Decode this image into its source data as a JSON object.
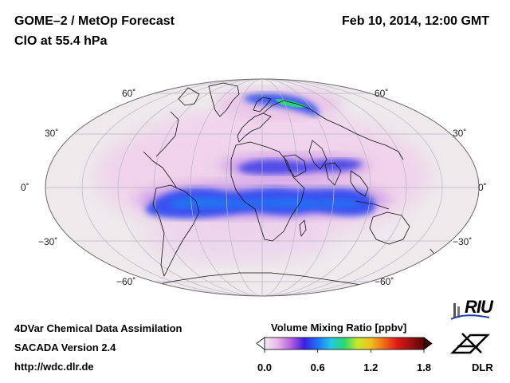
{
  "header": {
    "title_line1": "GOME–2 / MetOp Forecast",
    "title_line2": "ClO at 55.4 hPa",
    "date": "Feb 10, 2014, 12:00 GMT"
  },
  "map": {
    "projection": "Hammer-Aitoff (global)",
    "lat_labels": {
      "n60": "60˚",
      "n30": "30˚",
      "eq": "0˚",
      "s30": "−30˚",
      "s60": "−60˚"
    }
  },
  "footer": {
    "line1": "4DVar Chemical Data Assimilation",
    "line2": "SACADA Version 2.4",
    "line3": "http://wdc.dlr.de"
  },
  "colorbar": {
    "title": "Volume Mixing Ratio [ppbv]",
    "ticks": [
      "0.0",
      "0.6",
      "1.2",
      "1.8"
    ],
    "colors": [
      "#f3eef3",
      "#e7b4e8",
      "#b45fe0",
      "#3a1fe0",
      "#1e73f5",
      "#22c8e8",
      "#2bd870",
      "#c9e82a",
      "#f0c020",
      "#f06a18",
      "#e01818",
      "#9b1010",
      "#5a0808"
    ]
  },
  "logos": {
    "riu": "RIU",
    "dlr": "DLR"
  }
}
